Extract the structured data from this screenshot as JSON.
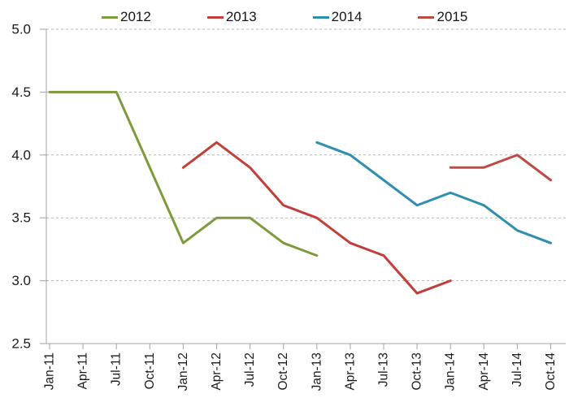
{
  "chart_data": {
    "type": "line",
    "title": "",
    "xlabel": "",
    "ylabel": "",
    "categories": [
      "Jan-11",
      "Apr-11",
      "Jul-11",
      "Oct-11",
      "Jan-12",
      "Apr-12",
      "Jul-12",
      "Oct-12",
      "Jan-13",
      "Apr-13",
      "Jul-13",
      "Oct-13",
      "Jan-14",
      "Apr-14",
      "Jul-14",
      "Oct-14"
    ],
    "series": [
      {
        "name": "2012",
        "color": "#7E9A3C",
        "start_category_index": 0,
        "values": [
          4.5,
          4.5,
          4.5,
          3.9,
          3.3,
          3.5,
          3.5,
          3.3,
          3.2
        ]
      },
      {
        "name": "2013",
        "color": "#C13E3A",
        "start_category_index": 4,
        "values": [
          3.9,
          4.1,
          3.9,
          3.6,
          3.5,
          3.3,
          3.2,
          2.9,
          3.0
        ]
      },
      {
        "name": "2014",
        "color": "#2E8FAE",
        "start_category_index": 8,
        "values": [
          4.1,
          4.0,
          3.8,
          3.6,
          3.7,
          3.6,
          3.4,
          3.3
        ]
      },
      {
        "name": "2015",
        "color": "#BE4A45",
        "start_category_index": 12,
        "values": [
          3.9,
          3.9,
          4.0,
          3.8
        ]
      }
    ],
    "ylim": [
      2.5,
      5.0
    ],
    "ytick_labels": [
      "5.0",
      "4.5",
      "4.0",
      "3.5",
      "3.0",
      "2.5"
    ],
    "grid": "horizontal-dashed",
    "legend_position": "top",
    "legend_entries": [
      "2012",
      "2013",
      "2014",
      "2015"
    ],
    "colors": {
      "grid": "#b5b5b5",
      "axis": "#a3a3a3",
      "tick_text": "#1a1a1a",
      "legend_text": "#141414",
      "background": "#ffffff"
    }
  }
}
